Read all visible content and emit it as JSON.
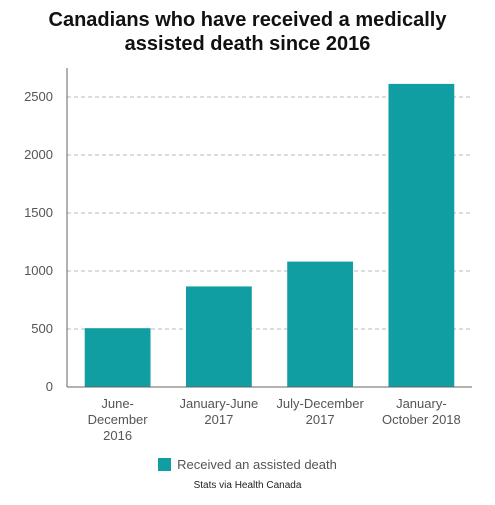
{
  "chart_data": {
    "type": "bar",
    "title_lines": [
      "Canadians who have received a medically",
      "assisted death since 2016"
    ],
    "categories": [
      [
        "June-",
        "December",
        "2016"
      ],
      [
        "January-June",
        "2017"
      ],
      [
        "July-December",
        "2017"
      ],
      [
        "January-",
        "October 2018"
      ]
    ],
    "series": [
      {
        "name": "Received an assisted death",
        "values": [
          507,
          867,
          1081,
          2613
        ],
        "color": "#109ea3"
      }
    ],
    "ylim": [
      0,
      2750
    ],
    "yticks": [
      0,
      500,
      1000,
      1500,
      2000,
      2500
    ],
    "grid": true,
    "legend_position": "bottom",
    "source": "Stats via Health Canada"
  }
}
